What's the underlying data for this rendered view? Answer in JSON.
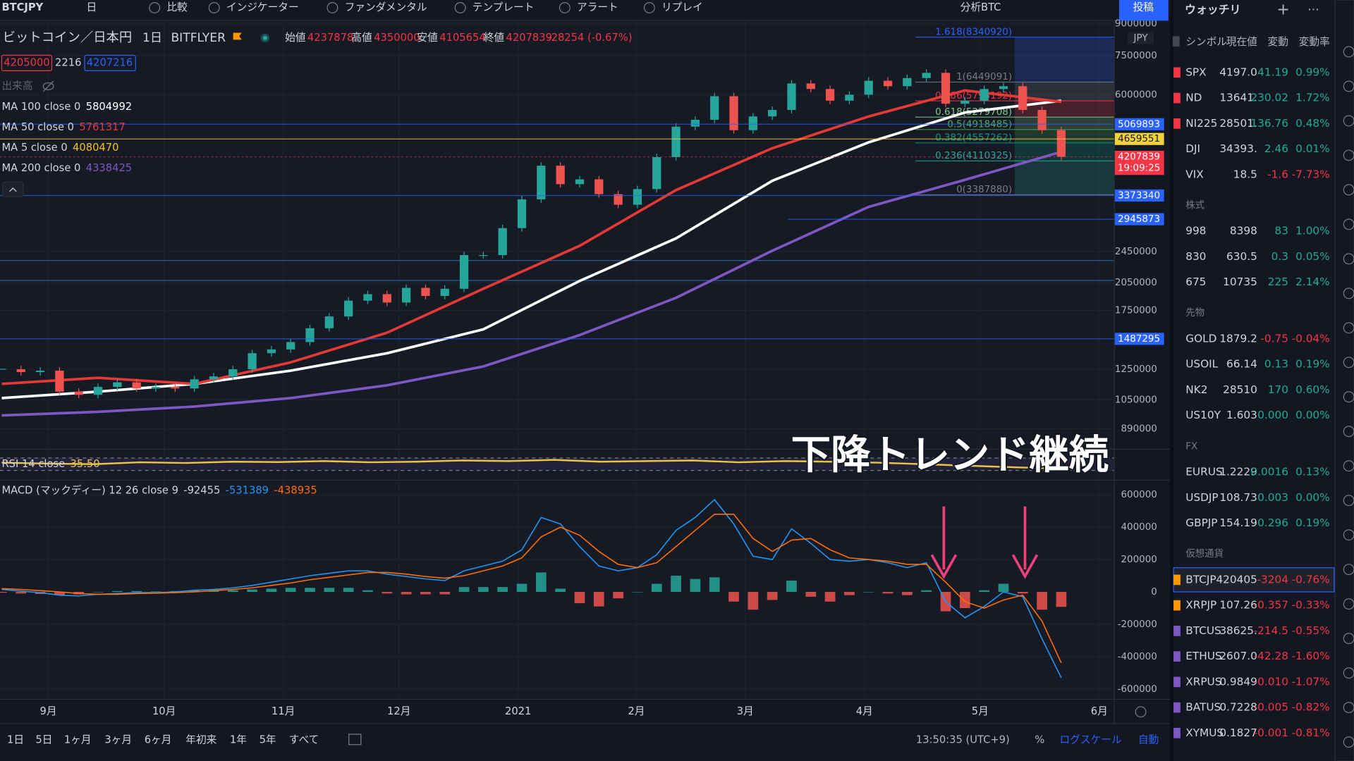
{
  "toolbar": {
    "symbol": "BTCJPY",
    "interval": "日",
    "items": [
      "比較",
      "インジケーター",
      "ファンダメンタル",
      "テンプレート",
      "アラート",
      "リプレイ"
    ],
    "layout": "分析BTC",
    "publish": "投稿"
  },
  "header": {
    "name": "ビットコイン／日本円",
    "interval": "1日",
    "exchange": "BITFLYER",
    "ohlc": [
      {
        "label": "始値",
        "value": "4237878"
      },
      {
        "label": "高値",
        "value": "4350000"
      },
      {
        "label": "安値",
        "value": "4105654"
      },
      {
        "label": "終値",
        "value": "4207839"
      }
    ],
    "change": "-28254 (-0.67%)",
    "bid": "4205000",
    "spread": "2216",
    "ask": "4207216",
    "volume": "出来高"
  },
  "indicators": [
    {
      "label": "MA 100 close 0",
      "value": "5804992",
      "color": "#ffffff",
      "width": 3,
      "values": [
        1060000,
        1100000,
        1150000,
        1240000,
        1370000,
        1570000,
        2070000,
        2640000,
        3670000,
        4570000,
        5420000,
        5800000
      ]
    },
    {
      "label": "MA 50 close 0",
      "value": "5761317",
      "color": "#e53935",
      "width": 3,
      "values": [
        1150000,
        1190000,
        1150000,
        1300000,
        1540000,
        1980000,
        2530000,
        3480000,
        4420000,
        5300000,
        6150000,
        5760000
      ]
    },
    {
      "label": "MA 5 close 0",
      "value": "4080470",
      "color": "#f0c419"
    },
    {
      "label": "MA 200 close 0",
      "value": "4338425",
      "color": "#7e57c2",
      "width": 3,
      "values": [
        960000,
        980000,
        1010000,
        1060000,
        1140000,
        1270000,
        1520000,
        1880000,
        2460000,
        3160000,
        3690000,
        4330000
      ]
    }
  ],
  "chart_data": [
    {
      "type": "candlestick",
      "log_scale": true,
      "currency": "JPY",
      "up_color": "#26a69a",
      "down_color": "#ef5350",
      "closes": [
        1250000,
        1230000,
        1240000,
        1100000,
        1080000,
        1130000,
        1160000,
        1120000,
        1130000,
        1120000,
        1180000,
        1200000,
        1250000,
        1370000,
        1400000,
        1460000,
        1580000,
        1690000,
        1850000,
        1920000,
        1830000,
        1990000,
        1900000,
        1980000,
        2400000,
        2400000,
        2800000,
        3300000,
        4000000,
        3600000,
        3700000,
        3400000,
        3200000,
        3500000,
        4200000,
        5000000,
        5200000,
        5950000,
        4900000,
        5300000,
        5500000,
        6400000,
        6200000,
        5800000,
        6000000,
        6500000,
        6300000,
        6600000,
        6800000,
        5700000,
        5800000,
        6200000,
        6300000,
        5500000,
        4900000,
        4207839
      ],
      "ylim": [
        794000,
        9250000
      ],
      "yticks": [
        9000000,
        7500000,
        6000000,
        2450000,
        2050000,
        1750000,
        1250000,
        1050000,
        890000
      ],
      "xticks": [
        "9月",
        "10月",
        "11月",
        "12月",
        "2021",
        "2月",
        "3月",
        "4月",
        "5月",
        "6月"
      ],
      "markers": [
        {
          "value": 5069893,
          "color": "#2962ff"
        },
        {
          "value": 4659551,
          "color": "#f0d23c"
        },
        {
          "value": 4207839,
          "color": "#f23645",
          "countdown": "19:09:25"
        },
        {
          "value": 3373340,
          "color": "#2962ff"
        },
        {
          "value": 2945873,
          "color": "#2962ff"
        },
        {
          "value": 1487295,
          "color": "#2962ff"
        }
      ],
      "fib": [
        {
          "label": "1.618(8340920)",
          "value": 8340920,
          "color": "#2962ff"
        },
        {
          "label": "1(6449091)",
          "value": 6449091,
          "color": "#787b86"
        },
        {
          "label": "0.786(5793192)",
          "value": 5793192,
          "color": "#f23645"
        },
        {
          "label": "0.618(5279708)",
          "value": 5279708,
          "color": "#81c784"
        },
        {
          "label": "0.5(4918485)",
          "value": 4918485,
          "color": "#4caf50"
        },
        {
          "label": "0.382(4557262)",
          "value": 4557262,
          "color": "#089981"
        },
        {
          "label": "0.236(4110325)",
          "value": 4110325,
          "color": "#26a69a"
        },
        {
          "label": "0(3387880)",
          "value": 3387880,
          "color": "#787b86"
        }
      ]
    },
    {
      "type": "line",
      "label": "RSI 14 close",
      "value": "35.50",
      "color": "#e8c547",
      "ylim": [
        0,
        100
      ],
      "bands": [
        30,
        70
      ],
      "values": [
        55,
        52,
        50,
        56,
        54,
        58,
        57,
        60,
        56,
        58,
        62,
        60,
        64,
        58,
        60,
        62,
        56,
        60,
        58,
        55,
        50,
        45,
        40,
        35.5
      ]
    },
    {
      "type": "macd",
      "label": "MACD (マックディー) 12 26 close 9",
      "hist_value": "-92455",
      "macd_value": "-531389",
      "signal_value": "-438935",
      "macd_color": "#2196f3",
      "signal_color": "#ff6d00",
      "up_color": "#26a69a",
      "down_color": "#ef5350",
      "ylim": [
        -661333,
        693333
      ],
      "yticks": [
        600000,
        400000,
        200000,
        0,
        -200000,
        -400000,
        -600000
      ],
      "macd": [
        15000,
        5000,
        -5000,
        -20000,
        -25000,
        -15000,
        -10000,
        -5000,
        -5000,
        0,
        10000,
        15000,
        25000,
        40000,
        60000,
        80000,
        100000,
        115000,
        130000,
        130000,
        110000,
        95000,
        80000,
        70000,
        130000,
        160000,
        190000,
        260000,
        460000,
        420000,
        280000,
        160000,
        130000,
        150000,
        230000,
        380000,
        460000,
        570000,
        420000,
        220000,
        200000,
        390000,
        300000,
        200000,
        190000,
        200000,
        180000,
        150000,
        180000,
        -60000,
        -160000,
        -90000,
        0,
        -30000,
        -290000,
        -531389
      ],
      "signal": [
        20000,
        15000,
        8000,
        0,
        -10000,
        -15000,
        -15000,
        -10000,
        -8000,
        -5000,
        0,
        8000,
        15000,
        25000,
        40000,
        55000,
        75000,
        90000,
        105000,
        120000,
        120000,
        110000,
        95000,
        85000,
        100000,
        130000,
        160000,
        210000,
        340000,
        400000,
        350000,
        250000,
        170000,
        150000,
        180000,
        280000,
        380000,
        480000,
        480000,
        330000,
        250000,
        320000,
        330000,
        260000,
        210000,
        200000,
        190000,
        170000,
        170000,
        60000,
        -60000,
        -100000,
        -50000,
        -20000,
        -180000,
        -438935
      ],
      "histogram": [
        -5000,
        -10000,
        -13000,
        -20000,
        -15000,
        0,
        5000,
        5000,
        3000,
        5000,
        10000,
        7000,
        10000,
        15000,
        20000,
        25000,
        25000,
        25000,
        25000,
        10000,
        -10000,
        -15000,
        -15000,
        -15000,
        30000,
        30000,
        30000,
        50000,
        120000,
        20000,
        -70000,
        -90000,
        -40000,
        0,
        50000,
        100000,
        80000,
        90000,
        -60000,
        -110000,
        -50000,
        70000,
        -30000,
        -60000,
        -20000,
        0,
        -10000,
        -20000,
        10000,
        -120000,
        -100000,
        10000,
        50000,
        -10000,
        -110000,
        -92455
      ]
    }
  ],
  "annotation": "下降トレンド継続",
  "watchlist": {
    "title": "ウォッチリ",
    "columns": [
      "シンボル",
      "現在値",
      "変動",
      "変動率"
    ],
    "sections": [
      {
        "rows": [
          {
            "symbol": "SPX",
            "last": "4197.0",
            "change": "41.19",
            "percent": "0.99%",
            "flag": "#f23645"
          },
          {
            "symbol": "ND",
            "last": "13641.",
            "change": "230.02",
            "percent": "1.72%",
            "flag": "#f23645"
          },
          {
            "symbol": "NI225",
            "last": "28501.",
            "change": "136.76",
            "percent": "0.48%",
            "flag": "#f23645"
          },
          {
            "symbol": "DJI",
            "last": "34393.",
            "change": "2.46",
            "percent": "0.01%"
          },
          {
            "symbol": "VIX",
            "last": "18.5",
            "change": "-1.6",
            "percent": "-7.73%"
          }
        ]
      },
      {
        "title": "株式",
        "rows": [
          {
            "symbol": "998",
            "last": "8398",
            "change": "83",
            "percent": "1.00%"
          },
          {
            "symbol": "830",
            "last": "630.5",
            "change": "0.3",
            "percent": "0.05%"
          },
          {
            "symbol": "675",
            "last": "10735",
            "change": "225",
            "percent": "2.14%"
          }
        ]
      },
      {
        "title": "先物",
        "rows": [
          {
            "symbol": "GOLD",
            "last": "1879.2",
            "change": "-0.75",
            "percent": "-0.04%"
          },
          {
            "symbol": "USOIL",
            "last": "66.14",
            "change": "0.13",
            "percent": "0.19%"
          },
          {
            "symbol": "NK2",
            "last": "28510",
            "change": "170",
            "percent": "0.60%"
          },
          {
            "symbol": "US10Y",
            "last": "1.603",
            "change": "0.000",
            "percent": "0.00%"
          }
        ]
      },
      {
        "title": "FX",
        "rows": [
          {
            "symbol": "EURUS",
            "last": "1.2229",
            "change": "0.0016",
            "percent": "0.13%"
          },
          {
            "symbol": "USDJP",
            "last": "108.73",
            "change": "0.003",
            "percent": "0.00%"
          },
          {
            "symbol": "GBPJP",
            "last": "154.19",
            "change": "0.296",
            "percent": "0.19%"
          }
        ]
      },
      {
        "title": "仮想通貨",
        "rows": [
          {
            "symbol": "BTCJP",
            "last": "420405",
            "change": "-3204",
            "percent": "-0.76%",
            "flag": "#ff9800"
          },
          {
            "symbol": "XRPJP",
            "last": "107.26",
            "change": "-0.357",
            "percent": "-0.33%",
            "flag": "#ff9800"
          },
          {
            "symbol": "BTCUS",
            "last": "38625.",
            "change": "-214.5",
            "percent": "-0.55%",
            "flag": "#7e57c2"
          },
          {
            "symbol": "ETHUS",
            "last": "2607.0",
            "change": "-42.28",
            "percent": "-1.60%",
            "flag": "#7e57c2"
          },
          {
            "symbol": "XRPUS",
            "last": "0.9849",
            "change": "-0.010",
            "percent": "-1.07%",
            "flag": "#7e57c2"
          },
          {
            "symbol": "BATUS",
            "last": "0.7228",
            "change": "-0.005",
            "percent": "-0.82%",
            "flag": "#7e57c2"
          },
          {
            "symbol": "XYMUS",
            "last": "0.1827",
            "change": "-0.001",
            "percent": "-0.81%",
            "flag": "#7e57c2"
          }
        ]
      }
    ]
  },
  "bottom": {
    "ranges": [
      "1日",
      "5日",
      "1ヶ月",
      "3ヶ月",
      "6ヶ月",
      "年初来",
      "1年",
      "5年",
      "すべて"
    ],
    "time": "13:50:35 (UTC+9)",
    "percent": "%",
    "log": "ログスケール",
    "auto": "自動"
  }
}
